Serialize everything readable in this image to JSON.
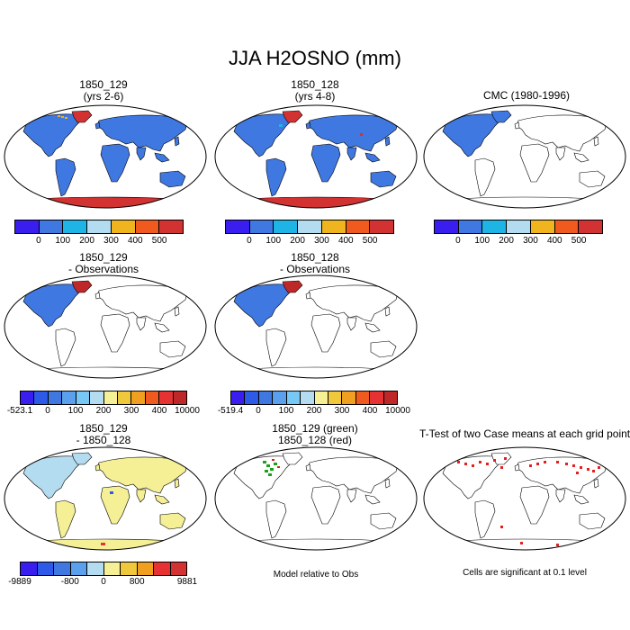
{
  "main_title": "JJA H2OSNO (mm)",
  "panels": [
    {
      "id": "p1",
      "title1": "1850_129",
      "title2": "(yrs 2-6)",
      "ticks": [
        "0",
        "100",
        "200",
        "300",
        "400",
        "500"
      ],
      "nsw": 7,
      "style": "abs129"
    },
    {
      "id": "p2",
      "title1": "1850_128",
      "title2": "(yrs 4-8)",
      "ticks": [
        "0",
        "100",
        "200",
        "300",
        "400",
        "500"
      ],
      "nsw": 7,
      "style": "abs128"
    },
    {
      "id": "p3",
      "title1": "CMC (1980-1996)",
      "title2": "",
      "ticks": [
        "0",
        "100",
        "200",
        "300",
        "400",
        "500"
      ],
      "nsw": 7,
      "style": "cmc"
    },
    {
      "id": "p4",
      "title1": "1850_129",
      "title2": "- Observations",
      "ticks": [
        "-523.1",
        "0",
        "100",
        "200",
        "300",
        "400",
        "10000"
      ],
      "nsw": 12,
      "style": "diff"
    },
    {
      "id": "p5",
      "title1": "1850_128",
      "title2": "- Observations",
      "ticks": [
        "-519.4",
        "0",
        "100",
        "200",
        "300",
        "400",
        "10000"
      ],
      "nsw": 12,
      "style": "diff"
    },
    {
      "id": "p6",
      "title1": "1850_129",
      "title2": "- 1850_128",
      "ticks": [
        "-9889",
        "-800",
        "0",
        "800",
        "9881"
      ],
      "nsw": 10,
      "style": "diffcase"
    },
    {
      "id": "p7",
      "title1": "1850_129 (green)",
      "title2": "1850_128 (red)",
      "ticks": [],
      "nsw": 0,
      "style": "rel"
    },
    {
      "id": "p8",
      "title1": "T-Test of two Case means at each grid point",
      "title2": "",
      "ticks": [],
      "nsw": 0,
      "style": "ttest"
    }
  ],
  "notes": {
    "model_relative": "Model relative to Obs",
    "significance": "Cells are significant at 0.1 level"
  },
  "colors": {
    "c7": [
      "#3a1ef0",
      "#3f78e0",
      "#1eb4e6",
      "#b4dcf0",
      "#f0b41e",
      "#f05a1e",
      "#d23232"
    ],
    "c12": [
      "#3a1ef0",
      "#2d5ae6",
      "#3f78e0",
      "#5aa0ec",
      "#78c8f5",
      "#b4dcf0",
      "#f5f096",
      "#f0c83c",
      "#f0a01e",
      "#f05a1e",
      "#e63232",
      "#be2828"
    ],
    "c10": [
      "#3a1ef0",
      "#2d5ae6",
      "#3f78e0",
      "#5aa0ec",
      "#b4dcf0",
      "#f5f096",
      "#f0c83c",
      "#f0a01e",
      "#e63232",
      "#d23232"
    ]
  }
}
